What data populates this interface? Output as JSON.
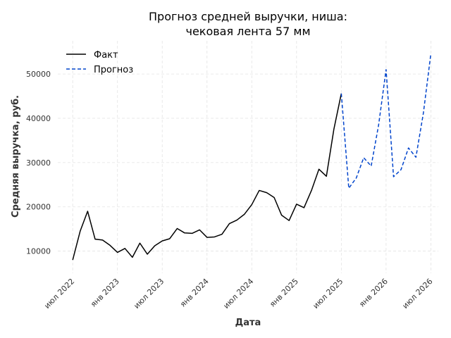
{
  "chart_data": {
    "type": "line",
    "title": [
      "Прогноз средней выручки, ниша:",
      "чековая лента 57 мм"
    ],
    "xlabel": "Дата",
    "ylabel": "Средняя выручка, руб.",
    "x_ticks": [
      {
        "date": "2022-07",
        "label": "июл 2022"
      },
      {
        "date": "2023-01",
        "label": "янв 2023"
      },
      {
        "date": "2023-07",
        "label": "июл 2023"
      },
      {
        "date": "2024-01",
        "label": "янв 2024"
      },
      {
        "date": "2024-07",
        "label": "июл 2024"
      },
      {
        "date": "2025-01",
        "label": "янв 2025"
      },
      {
        "date": "2025-07",
        "label": "июл 2025"
      },
      {
        "date": "2026-01",
        "label": "янв 2026"
      },
      {
        "date": "2026-07",
        "label": "июл 2026"
      }
    ],
    "y_ticks": [
      10000,
      20000,
      30000,
      40000,
      50000
    ],
    "ylim": [
      5000,
      57500
    ],
    "xlim": [
      "2022-05",
      "2026-08"
    ],
    "grid": true,
    "legend_position": "top-left",
    "series": [
      {
        "name": "Факт",
        "color": "#000000",
        "style": "solid",
        "points": [
          {
            "x": "2022-07",
            "y": 8000
          },
          {
            "x": "2022-08",
            "y": 14500
          },
          {
            "x": "2022-09",
            "y": 19000
          },
          {
            "x": "2022-10",
            "y": 12700
          },
          {
            "x": "2022-11",
            "y": 12500
          },
          {
            "x": "2022-12",
            "y": 11300
          },
          {
            "x": "2023-01",
            "y": 9700
          },
          {
            "x": "2023-02",
            "y": 10600
          },
          {
            "x": "2023-03",
            "y": 8600
          },
          {
            "x": "2023-04",
            "y": 11800
          },
          {
            "x": "2023-05",
            "y": 9300
          },
          {
            "x": "2023-06",
            "y": 11200
          },
          {
            "x": "2023-07",
            "y": 12300
          },
          {
            "x": "2023-08",
            "y": 12800
          },
          {
            "x": "2023-09",
            "y": 15100
          },
          {
            "x": "2023-10",
            "y": 14100
          },
          {
            "x": "2023-11",
            "y": 14000
          },
          {
            "x": "2023-12",
            "y": 14800
          },
          {
            "x": "2024-01",
            "y": 13100
          },
          {
            "x": "2024-02",
            "y": 13200
          },
          {
            "x": "2024-03",
            "y": 13800
          },
          {
            "x": "2024-04",
            "y": 16200
          },
          {
            "x": "2024-05",
            "y": 17000
          },
          {
            "x": "2024-06",
            "y": 18300
          },
          {
            "x": "2024-07",
            "y": 20500
          },
          {
            "x": "2024-08",
            "y": 23700
          },
          {
            "x": "2024-09",
            "y": 23200
          },
          {
            "x": "2024-10",
            "y": 22100
          },
          {
            "x": "2024-11",
            "y": 18100
          },
          {
            "x": "2024-12",
            "y": 16900
          },
          {
            "x": "2025-01",
            "y": 20600
          },
          {
            "x": "2025-02",
            "y": 19800
          },
          {
            "x": "2025-03",
            "y": 23700
          },
          {
            "x": "2025-04",
            "y": 28500
          },
          {
            "x": "2025-05",
            "y": 26900
          },
          {
            "x": "2025-06",
            "y": 37500
          },
          {
            "x": "2025-07",
            "y": 45600
          }
        ]
      },
      {
        "name": "Прогноз",
        "color": "#0044cc",
        "style": "dashed",
        "points": [
          {
            "x": "2025-07",
            "y": 45600
          },
          {
            "x": "2025-08",
            "y": 24200
          },
          {
            "x": "2025-09",
            "y": 26500
          },
          {
            "x": "2025-10",
            "y": 31100
          },
          {
            "x": "2025-11",
            "y": 29200
          },
          {
            "x": "2025-12",
            "y": 38500
          },
          {
            "x": "2026-01",
            "y": 51000
          },
          {
            "x": "2026-02",
            "y": 26800
          },
          {
            "x": "2026-03",
            "y": 28400
          },
          {
            "x": "2026-04",
            "y": 33300
          },
          {
            "x": "2026-05",
            "y": 31200
          },
          {
            "x": "2026-06",
            "y": 41200
          },
          {
            "x": "2026-07",
            "y": 54600
          }
        ]
      }
    ]
  }
}
